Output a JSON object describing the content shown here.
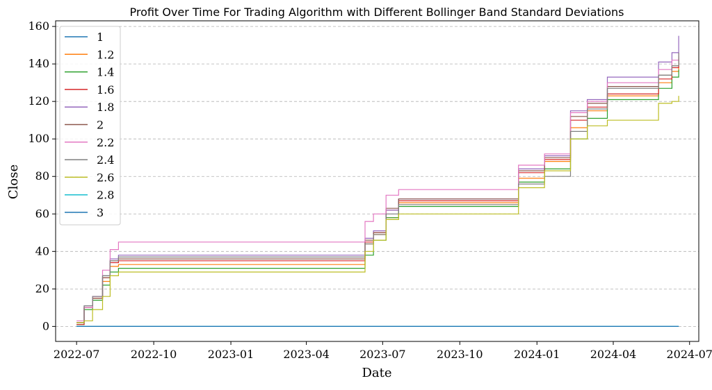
{
  "chart_data": {
    "type": "line",
    "title": "Profit Over Time For Trading Algorithm with Different Bollinger Band Standard Deviations",
    "xlabel": "Date",
    "ylabel": "Close",
    "xlim": [
      "2022-06-06",
      "2024-07-12"
    ],
    "ylim": [
      -8,
      163
    ],
    "x_ticks": [
      "2022-07",
      "2022-10",
      "2023-01",
      "2023-04",
      "2023-07",
      "2023-10",
      "2024-01",
      "2024-04",
      "2024-07"
    ],
    "y_ticks": [
      0,
      20,
      40,
      60,
      80,
      100,
      120,
      140,
      160
    ],
    "grid": "y-dashed",
    "legend_position": "upper-left",
    "series": [
      {
        "name": "1",
        "color": "#1f77b4",
        "points": [
          [
            "2022-07-01",
            0
          ],
          [
            "2024-06-18",
            0
          ]
        ]
      },
      {
        "name": "1.2",
        "color": "#ff7f0e",
        "points": [
          [
            "2022-07-01",
            2
          ],
          [
            "2022-07-10",
            10
          ],
          [
            "2022-07-20",
            15
          ],
          [
            "2022-08-01",
            24
          ],
          [
            "2022-08-10",
            32
          ],
          [
            "2022-08-20",
            33
          ],
          [
            "2023-05-31",
            33
          ],
          [
            "2023-06-10",
            44
          ],
          [
            "2023-06-20",
            49
          ],
          [
            "2023-07-05",
            58
          ],
          [
            "2023-07-20",
            66
          ],
          [
            "2023-11-25",
            66
          ],
          [
            "2023-12-10",
            79
          ],
          [
            "2024-01-10",
            88
          ],
          [
            "2024-02-10",
            106
          ],
          [
            "2024-03-01",
            115
          ],
          [
            "2024-03-25",
            123
          ],
          [
            "2024-05-10",
            123
          ],
          [
            "2024-05-25",
            130
          ],
          [
            "2024-06-10",
            136
          ],
          [
            "2024-06-18",
            143
          ]
        ]
      },
      {
        "name": "1.4",
        "color": "#2ca02c",
        "points": [
          [
            "2022-07-01",
            1
          ],
          [
            "2022-07-10",
            9
          ],
          [
            "2022-07-20",
            14
          ],
          [
            "2022-08-01",
            22
          ],
          [
            "2022-08-10",
            29
          ],
          [
            "2022-08-20",
            31
          ],
          [
            "2023-05-31",
            31
          ],
          [
            "2023-06-10",
            38
          ],
          [
            "2023-06-20",
            46
          ],
          [
            "2023-07-05",
            58
          ],
          [
            "2023-07-20",
            64
          ],
          [
            "2023-11-25",
            64
          ],
          [
            "2023-12-10",
            77
          ],
          [
            "2024-01-10",
            84
          ],
          [
            "2024-02-10",
            100
          ],
          [
            "2024-03-01",
            111
          ],
          [
            "2024-03-25",
            121
          ],
          [
            "2024-05-10",
            121
          ],
          [
            "2024-05-25",
            127
          ],
          [
            "2024-06-10",
            133
          ],
          [
            "2024-06-18",
            137
          ]
        ]
      },
      {
        "name": "1.6",
        "color": "#d62728",
        "points": [
          [
            "2022-07-01",
            1
          ],
          [
            "2022-07-10",
            10
          ],
          [
            "2022-07-20",
            15
          ],
          [
            "2022-08-01",
            26
          ],
          [
            "2022-08-10",
            34
          ],
          [
            "2022-08-20",
            35
          ],
          [
            "2023-05-31",
            35
          ],
          [
            "2023-06-10",
            45
          ],
          [
            "2023-06-20",
            50
          ],
          [
            "2023-07-05",
            62
          ],
          [
            "2023-07-20",
            67
          ],
          [
            "2023-11-25",
            67
          ],
          [
            "2023-12-10",
            82
          ],
          [
            "2024-01-10",
            89
          ],
          [
            "2024-02-10",
            110
          ],
          [
            "2024-03-01",
            117
          ],
          [
            "2024-03-25",
            124
          ],
          [
            "2024-05-10",
            124
          ],
          [
            "2024-05-25",
            132
          ],
          [
            "2024-06-10",
            138
          ],
          [
            "2024-06-18",
            144
          ]
        ]
      },
      {
        "name": "1.8",
        "color": "#9467bd",
        "points": [
          [
            "2022-07-01",
            2
          ],
          [
            "2022-07-10",
            11
          ],
          [
            "2022-07-20",
            16
          ],
          [
            "2022-08-01",
            27
          ],
          [
            "2022-08-10",
            36
          ],
          [
            "2022-08-20",
            38
          ],
          [
            "2023-05-31",
            38
          ],
          [
            "2023-06-10",
            47
          ],
          [
            "2023-06-20",
            51
          ],
          [
            "2023-07-05",
            62
          ],
          [
            "2023-07-20",
            68
          ],
          [
            "2023-11-25",
            68
          ],
          [
            "2023-12-10",
            84
          ],
          [
            "2024-01-10",
            91
          ],
          [
            "2024-02-10",
            115
          ],
          [
            "2024-03-01",
            121
          ],
          [
            "2024-03-25",
            133
          ],
          [
            "2024-05-10",
            133
          ],
          [
            "2024-05-25",
            141
          ],
          [
            "2024-06-10",
            146
          ],
          [
            "2024-06-18",
            155
          ]
        ]
      },
      {
        "name": "2",
        "color": "#8c564b",
        "points": [
          [
            "2022-07-01",
            2
          ],
          [
            "2022-07-10",
            10
          ],
          [
            "2022-07-20",
            15
          ],
          [
            "2022-08-01",
            26
          ],
          [
            "2022-08-10",
            35
          ],
          [
            "2022-08-20",
            36
          ],
          [
            "2023-05-31",
            36
          ],
          [
            "2023-06-10",
            46
          ],
          [
            "2023-06-20",
            50
          ],
          [
            "2023-07-05",
            63
          ],
          [
            "2023-07-20",
            68
          ],
          [
            "2023-11-25",
            68
          ],
          [
            "2023-12-10",
            83
          ],
          [
            "2024-01-10",
            90
          ],
          [
            "2024-02-10",
            112
          ],
          [
            "2024-03-01",
            119
          ],
          [
            "2024-03-25",
            128
          ],
          [
            "2024-05-10",
            128
          ],
          [
            "2024-05-25",
            134
          ],
          [
            "2024-06-10",
            139
          ],
          [
            "2024-06-18",
            146
          ]
        ]
      },
      {
        "name": "2.2",
        "color": "#e377c2",
        "points": [
          [
            "2022-07-01",
            3
          ],
          [
            "2022-07-10",
            10
          ],
          [
            "2022-07-20",
            16
          ],
          [
            "2022-08-01",
            30
          ],
          [
            "2022-08-10",
            41
          ],
          [
            "2022-08-20",
            45
          ],
          [
            "2023-05-31",
            45
          ],
          [
            "2023-06-10",
            56
          ],
          [
            "2023-06-20",
            60
          ],
          [
            "2023-07-05",
            70
          ],
          [
            "2023-07-20",
            73
          ],
          [
            "2023-11-25",
            73
          ],
          [
            "2023-12-10",
            86
          ],
          [
            "2024-01-10",
            92
          ],
          [
            "2024-02-10",
            114
          ],
          [
            "2024-03-01",
            120
          ],
          [
            "2024-03-25",
            130
          ],
          [
            "2024-05-10",
            130
          ],
          [
            "2024-05-25",
            137
          ],
          [
            "2024-06-10",
            142
          ],
          [
            "2024-06-18",
            146
          ]
        ]
      },
      {
        "name": "2.4",
        "color": "#7f7f7f",
        "points": [
          [
            "2022-07-01",
            2
          ],
          [
            "2022-07-10",
            11
          ],
          [
            "2022-07-20",
            16
          ],
          [
            "2022-08-01",
            27
          ],
          [
            "2022-08-10",
            35
          ],
          [
            "2022-08-20",
            37
          ],
          [
            "2023-05-31",
            37
          ],
          [
            "2023-06-10",
            44
          ],
          [
            "2023-06-20",
            49
          ],
          [
            "2023-07-05",
            60
          ],
          [
            "2023-07-20",
            65
          ],
          [
            "2023-11-25",
            65
          ],
          [
            "2023-12-10",
            76
          ],
          [
            "2024-01-10",
            80
          ],
          [
            "2024-02-10",
            104
          ],
          [
            "2024-03-01",
            116
          ],
          [
            "2024-03-25",
            127
          ],
          [
            "2024-05-10",
            127
          ],
          [
            "2024-05-25",
            134
          ],
          [
            "2024-06-10",
            139
          ],
          [
            "2024-06-18",
            146
          ]
        ]
      },
      {
        "name": "2.6",
        "color": "#bcbd22",
        "points": [
          [
            "2022-07-01",
            2
          ],
          [
            "2022-07-10",
            3
          ],
          [
            "2022-07-20",
            9
          ],
          [
            "2022-08-01",
            16
          ],
          [
            "2022-08-10",
            27
          ],
          [
            "2022-08-20",
            29
          ],
          [
            "2023-05-31",
            29
          ],
          [
            "2023-06-10",
            40
          ],
          [
            "2023-06-20",
            46
          ],
          [
            "2023-07-05",
            57
          ],
          [
            "2023-07-20",
            60
          ],
          [
            "2023-11-25",
            60
          ],
          [
            "2023-12-10",
            74
          ],
          [
            "2024-01-10",
            83
          ],
          [
            "2024-02-10",
            100
          ],
          [
            "2024-03-01",
            107
          ],
          [
            "2024-03-25",
            110
          ],
          [
            "2024-05-10",
            110
          ],
          [
            "2024-05-25",
            119
          ],
          [
            "2024-06-10",
            120
          ],
          [
            "2024-06-18",
            123
          ]
        ]
      },
      {
        "name": "2.8",
        "color": "#17becf",
        "points": [
          [
            "2022-07-01",
            0
          ],
          [
            "2024-06-18",
            0
          ]
        ]
      },
      {
        "name": "3",
        "color": "#1f77b4",
        "points": [
          [
            "2022-07-01",
            0
          ],
          [
            "2024-06-18",
            0
          ]
        ]
      }
    ]
  }
}
